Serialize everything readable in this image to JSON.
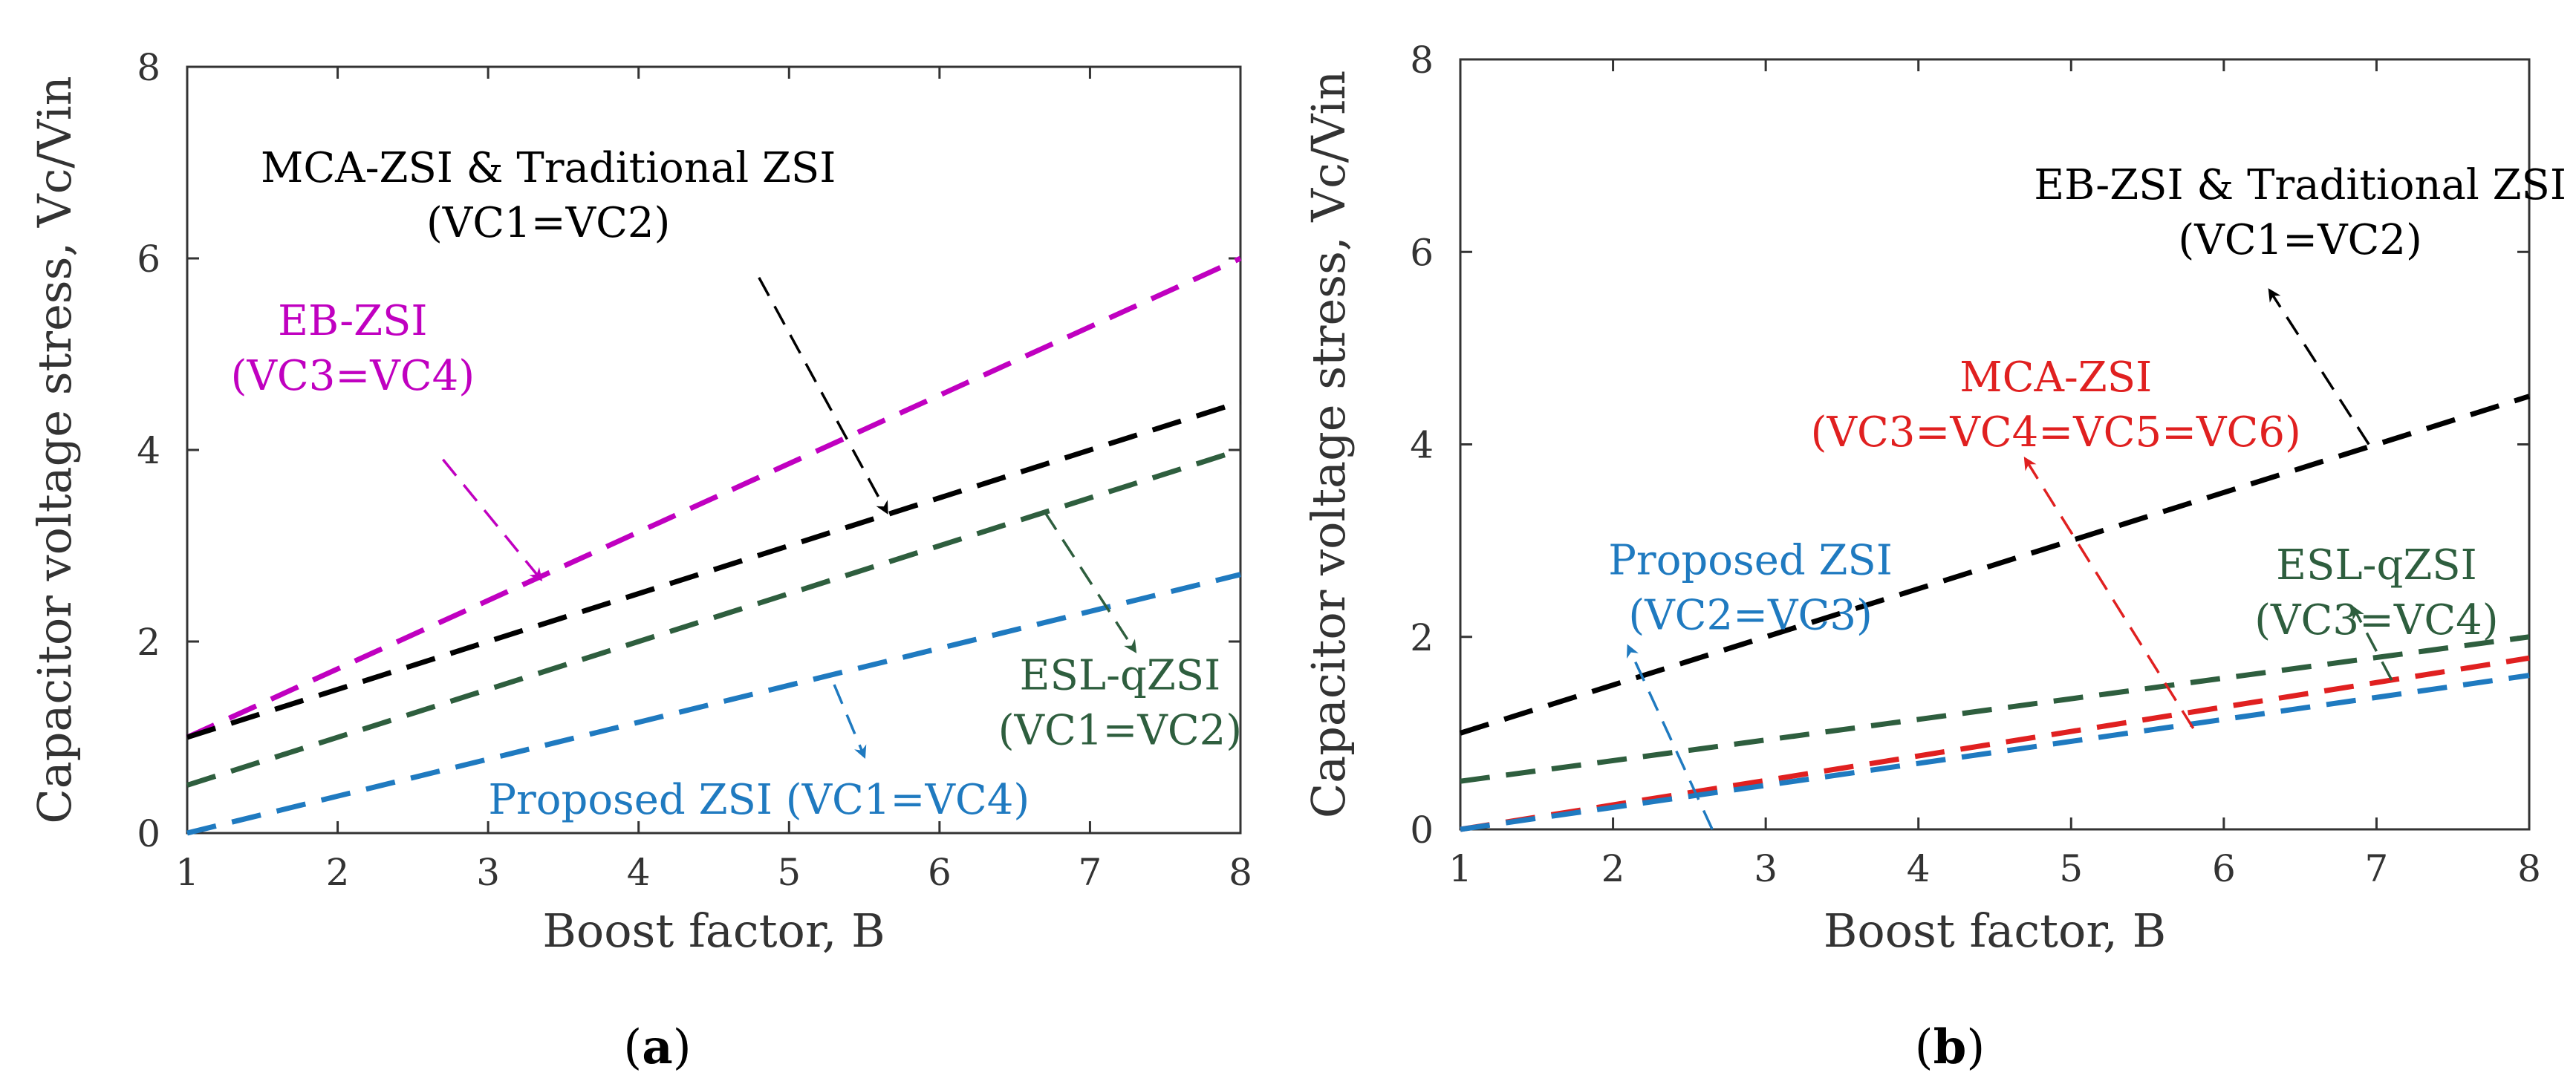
{
  "chart_data": [
    {
      "type": "line",
      "panel_label": "(a)",
      "xlabel": "Boost factor, B",
      "ylabel": "Capacitor voltage stress, Vc/Vin",
      "xlim": [
        1,
        8
      ],
      "ylim": [
        0,
        8
      ],
      "xticks": [
        1,
        2,
        3,
        4,
        5,
        6,
        7,
        8
      ],
      "yticks": [
        0,
        2,
        4,
        6,
        8
      ],
      "series": [
        {
          "name": "EB-ZSI (VC3=VC4)",
          "color": "#c000c0",
          "x": [
            1,
            8
          ],
          "y": [
            1.0,
            6.0
          ]
        },
        {
          "name": "MCA-ZSI & Traditional ZSI (VC1=VC2)",
          "color": "#000000",
          "x": [
            1,
            8
          ],
          "y": [
            1.0,
            4.5
          ]
        },
        {
          "name": "ESL-qZSI (VC1=VC2)",
          "color": "#2e5e3e",
          "x": [
            1,
            8
          ],
          "y": [
            0.5,
            4.0
          ]
        },
        {
          "name": "Proposed ZSI (VC1=VC4)",
          "color": "#1f7ac0",
          "x": [
            1,
            8
          ],
          "y": [
            0.0,
            2.7
          ]
        }
      ],
      "annotations": [
        {
          "lines": [
            "MCA-ZSI & Traditional ZSI",
            "(VC1=VC2)"
          ],
          "color": "#000000",
          "text_at": [
            3.4,
            6.8
          ],
          "arrow_from": [
            4.8,
            5.8
          ],
          "arrow_to": [
            5.65,
            3.35
          ]
        },
        {
          "lines": [
            "EB-ZSI",
            "(VC3=VC4)"
          ],
          "color": "#c000c0",
          "text_at": [
            2.1,
            5.2
          ],
          "arrow_from": [
            2.7,
            3.9
          ],
          "arrow_to": [
            3.35,
            2.65
          ]
        },
        {
          "lines": [
            "ESL-qZSI",
            "(VC1=VC2)"
          ],
          "color": "#2e5e3e",
          "text_at": [
            7.2,
            1.5
          ],
          "arrow_from": [
            6.7,
            3.35
          ],
          "arrow_to": [
            7.3,
            1.9
          ]
        },
        {
          "lines": [
            "Proposed ZSI (VC1=VC4)"
          ],
          "color": "#1f7ac0",
          "text_at": [
            4.8,
            0.2
          ],
          "arrow_from": [
            5.3,
            1.55
          ],
          "arrow_to": [
            5.5,
            0.8
          ]
        }
      ]
    },
    {
      "type": "line",
      "panel_label": "(b)",
      "xlabel": "Boost factor, B",
      "ylabel": "Capacitor voltage stress, Vc/Vin",
      "xlim": [
        1,
        8
      ],
      "ylim": [
        0,
        8
      ],
      "xticks": [
        1,
        2,
        3,
        4,
        5,
        6,
        7,
        8
      ],
      "yticks": [
        0,
        2,
        4,
        6,
        8
      ],
      "series": [
        {
          "name": "EB-ZSI & Traditional ZSI (VC1=VC2)",
          "color": "#000000",
          "x": [
            1,
            8
          ],
          "y": [
            1.0,
            4.5
          ]
        },
        {
          "name": "ESL-qZSI (VC3=VC4)",
          "color": "#2e5e3e",
          "x": [
            1,
            8
          ],
          "y": [
            0.5,
            2.0
          ]
        },
        {
          "name": "MCA-ZSI (VC3=VC4=VC5=VC6)",
          "color": "#e02020",
          "x": [
            1,
            8
          ],
          "y": [
            0.0,
            1.78
          ]
        },
        {
          "name": "Proposed ZSI (VC2=VC3)",
          "color": "#1f7ac0",
          "x": [
            1,
            8
          ],
          "y": [
            0.0,
            1.6
          ]
        }
      ],
      "annotations": [
        {
          "lines": [
            "EB-ZSI & Traditional ZSI",
            "(VC1=VC2)"
          ],
          "color": "#000000",
          "text_at": [
            6.5,
            6.55
          ],
          "arrow_from": [
            6.95,
            4.0
          ],
          "arrow_to": [
            6.3,
            5.6
          ]
        },
        {
          "lines": [
            "MCA-ZSI",
            "(VC3=VC4=VC5=VC6)"
          ],
          "color": "#e02020",
          "text_at": [
            4.9,
            4.55
          ],
          "arrow_from": [
            5.8,
            1.05
          ],
          "arrow_to": [
            4.7,
            3.85
          ]
        },
        {
          "lines": [
            "ESL-qZSI",
            "(VC3=VC4)"
          ],
          "color": "#2e5e3e",
          "text_at": [
            7.0,
            2.6
          ],
          "arrow_from": [
            7.1,
            1.55
          ],
          "arrow_to": [
            6.85,
            2.3
          ]
        },
        {
          "lines": [
            "Proposed ZSI",
            "(VC2=VC3)"
          ],
          "color": "#1f7ac0",
          "text_at": [
            2.9,
            2.65
          ],
          "arrow_from": [
            2.65,
            0.0
          ],
          "arrow_to": [
            2.1,
            1.9
          ]
        }
      ]
    }
  ]
}
